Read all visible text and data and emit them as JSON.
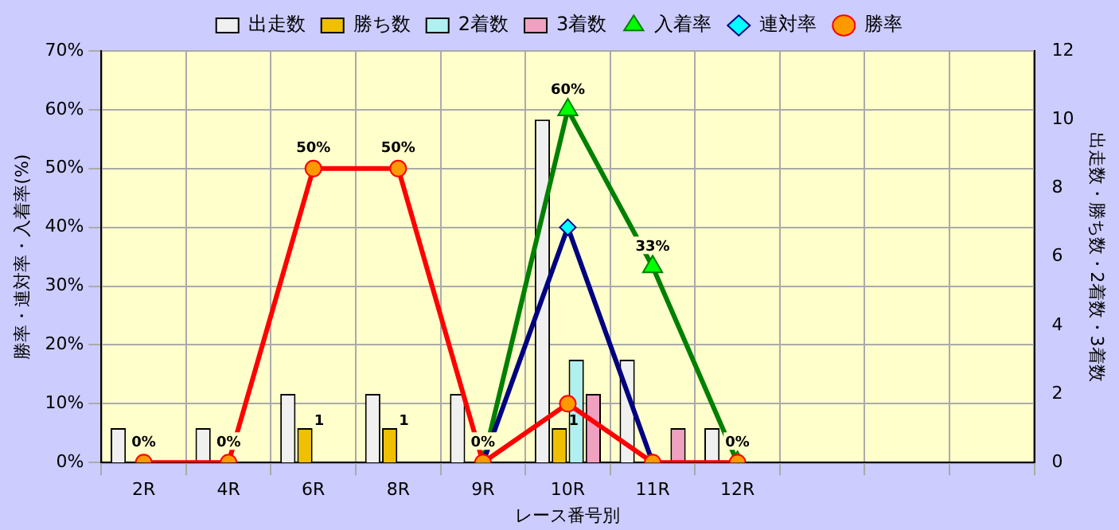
{
  "chart_data": {
    "type": "bar",
    "xlabel": "レース番号別",
    "ylabel": "勝率・連対率・入着率(%)",
    "y2label": "出走数・勝ち数・2着数・3着数",
    "categories": [
      "2R",
      "4R",
      "6R",
      "8R",
      "9R",
      "10R",
      "11R",
      "12R",
      null,
      null,
      null
    ],
    "series": [
      {
        "name": "出走数",
        "axis": "y2",
        "color": "#f0f0f0",
        "values": [
          1,
          1,
          2,
          2,
          2,
          10,
          3,
          1,
          null,
          null,
          null
        ]
      },
      {
        "name": "勝ち数",
        "axis": "y2",
        "color": "#f0c000",
        "values": [
          0,
          0,
          1,
          1,
          0,
          1,
          0,
          0,
          null,
          null,
          null
        ],
        "value_labels": [
          null,
          null,
          "1",
          "1",
          null,
          "1",
          null,
          null,
          null,
          null,
          null
        ]
      },
      {
        "name": "2着数",
        "axis": "y2",
        "color": "#b0f0f0",
        "values": [
          0,
          0,
          0,
          0,
          0,
          3,
          0,
          0,
          null,
          null,
          null
        ]
      },
      {
        "name": "3着数",
        "axis": "y2",
        "color": "#f0a0c0",
        "values": [
          0,
          0,
          0,
          0,
          0,
          2,
          1,
          0,
          null,
          null,
          null
        ]
      },
      {
        "name": "入着率",
        "type": "line",
        "color": "#008000",
        "marker": "triangle",
        "values": [
          null,
          null,
          null,
          null,
          0,
          60,
          33.3,
          0,
          null,
          null,
          null
        ],
        "value_labels": [
          null,
          null,
          null,
          null,
          "0%",
          "60%",
          "33%",
          "0%",
          null,
          null,
          null
        ]
      },
      {
        "name": "連対率",
        "type": "line",
        "color": "#000080",
        "marker": "diamond",
        "values": [
          null,
          null,
          null,
          null,
          0,
          40,
          0,
          null,
          null,
          null,
          null
        ]
      },
      {
        "name": "勝率",
        "type": "line",
        "color": "#ff0000",
        "marker": "circle",
        "values": [
          0,
          0,
          50,
          50,
          0,
          10,
          0,
          0,
          null,
          null,
          null
        ],
        "value_labels": [
          "0%",
          "0%",
          "50%",
          "50%",
          null,
          null,
          null,
          null,
          null,
          null,
          null
        ]
      }
    ],
    "ylim": [
      0,
      70
    ],
    "yticks": [
      {
        "value": 0,
        "label": "0%"
      },
      {
        "value": 10,
        "label": "10%"
      },
      {
        "value": 20,
        "label": "20%"
      },
      {
        "value": 30,
        "label": "30%"
      },
      {
        "value": 40,
        "label": "40%"
      },
      {
        "value": 50,
        "label": "50%"
      },
      {
        "value": 60,
        "label": "60%"
      },
      {
        "value": 70,
        "label": "70%"
      }
    ],
    "y2lim": [
      0,
      12
    ],
    "y2ticks": [
      0,
      2,
      4,
      6,
      8,
      10,
      12
    ],
    "grid": true,
    "legend": "top",
    "line_style": "solid"
  }
}
